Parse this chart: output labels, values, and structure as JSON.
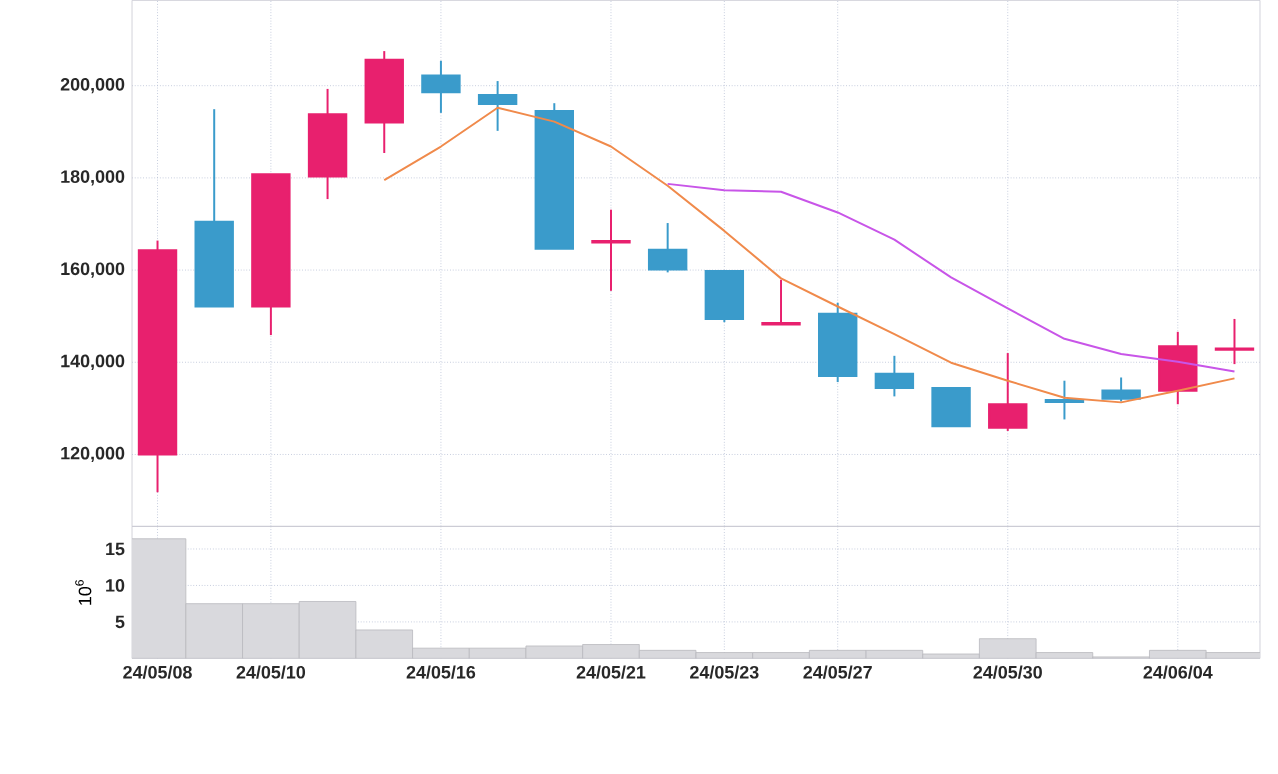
{
  "chart_data": [
    {
      "type": "candlestick",
      "categories": [
        null,
        null,
        null,
        null,
        null,
        null,
        null,
        null,
        null,
        null,
        null,
        null,
        null,
        null,
        null,
        null,
        null,
        null,
        null,
        null
      ],
      "ohlc": [
        [
          120000,
          166400,
          111800,
          164300
        ],
        [
          170500,
          194900,
          152100,
          152100
        ],
        [
          152100,
          180800,
          145900,
          180800
        ],
        [
          180300,
          199300,
          175400,
          193800
        ],
        [
          192000,
          207500,
          185400,
          205600
        ],
        [
          202200,
          205400,
          194100,
          198600
        ],
        [
          198000,
          201000,
          190200,
          196000
        ],
        [
          194500,
          196200,
          164600,
          164600
        ],
        [
          166000,
          173100,
          155500,
          166300
        ],
        [
          164400,
          170200,
          159500,
          160100
        ],
        [
          159800,
          159900,
          148700,
          149400
        ],
        [
          148200,
          157900,
          148200,
          148500
        ],
        [
          150500,
          152900,
          135700,
          137000
        ],
        [
          137500,
          141400,
          132600,
          134400
        ],
        [
          134400,
          134600,
          126100,
          126100
        ],
        [
          125800,
          142000,
          125100,
          130900
        ],
        [
          131800,
          136000,
          127600,
          131400
        ],
        [
          133900,
          136700,
          131500,
          132100
        ],
        [
          133800,
          146600,
          130900,
          143500
        ],
        [
          142700,
          149400,
          139600,
          143000
        ]
      ],
      "colors": [
        "#e8206e",
        "#3a9bcb",
        "#e8206e",
        "#e8206e",
        "#e8206e",
        "#3a9bcb",
        "#3a9bcb",
        "#3a9bcb",
        "#e8206e",
        "#3a9bcb",
        "#3a9bcb",
        "#e8206e",
        "#3a9bcb",
        "#3a9bcb",
        "#3a9bcb",
        "#e8206e",
        "#3a9bcb",
        "#3a9bcb",
        "#e8206e",
        "#e8206e"
      ],
      "series": [
        {
          "type": "line",
          "color": "#f08a4b",
          "values": [
            null,
            null,
            null,
            null,
            179500,
            186800,
            195200,
            192200,
            186800,
            178300,
            168500,
            158200,
            152100,
            146100,
            139900,
            136000,
            132300,
            131300,
            133800,
            136500
          ]
        },
        {
          "type": "line",
          "color": "#c855e8",
          "values": [
            null,
            null,
            null,
            null,
            null,
            null,
            null,
            null,
            null,
            178700,
            177300,
            177000,
            172500,
            166600,
            158400,
            151700,
            145100,
            141800,
            140100,
            138000
          ]
        }
      ],
      "ylim": [
        104400,
        218500
      ],
      "yticks": [
        {
          "value": 120000,
          "label": "120,000"
        },
        {
          "value": 140000,
          "label": "140,000"
        },
        {
          "value": 160000,
          "label": "160,000"
        },
        {
          "value": 180000,
          "label": "180,000"
        },
        {
          "value": 200000,
          "label": "200,000"
        }
      ],
      "grid": true,
      "tick_labels": "y"
    },
    {
      "type": "bar",
      "categories": [
        "24/05/08",
        null,
        "24/05/10",
        null,
        null,
        "24/05/16",
        null,
        null,
        "24/05/21",
        null,
        "24/05/23",
        null,
        "24/05/27",
        null,
        null,
        "24/05/30",
        null,
        null,
        "24/06/04",
        null
      ],
      "values": [
        16.4,
        7.5,
        7.5,
        7.8,
        3.9,
        1.4,
        1.4,
        1.7,
        1.9,
        1.1,
        0.8,
        0.8,
        1.1,
        1.1,
        0.6,
        2.7,
        0.8,
        0.2,
        1.1,
        0.8
      ],
      "color": "#d9d9dd",
      "ylabel": "10$^{6}$",
      "ylim": [
        0,
        18.1
      ],
      "yticks": [
        5,
        10,
        15
      ],
      "grid": true
    }
  ]
}
